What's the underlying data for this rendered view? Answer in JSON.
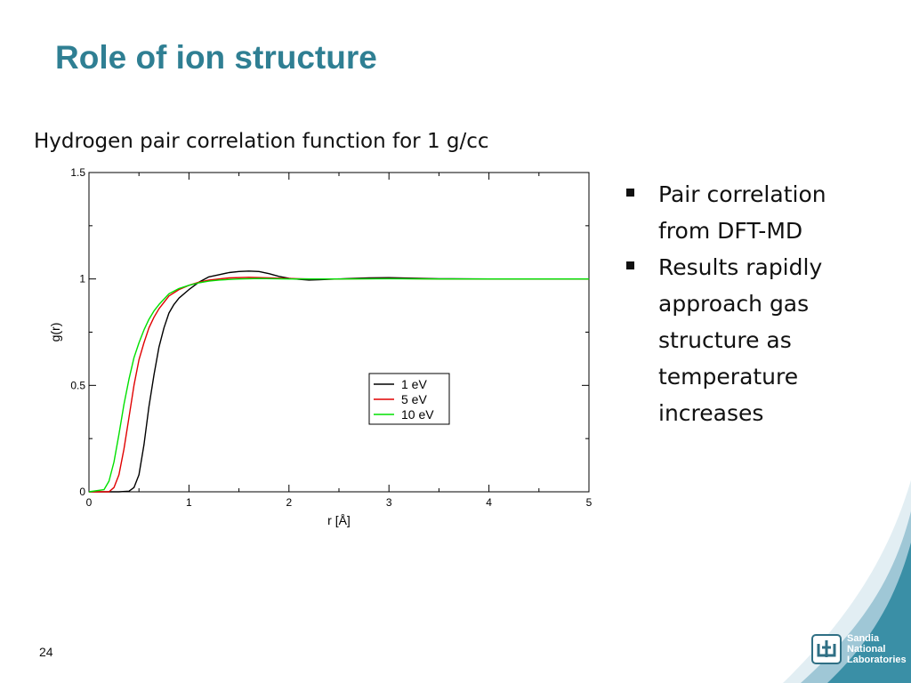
{
  "slide": {
    "title": "Role of ion structure",
    "chart_heading": "Hydrogen pair correlation function for 1 g/cc",
    "bullets": [
      "Pair correlation from DFT-MD",
      "Results rapidly approach gas structure as temperature increases"
    ],
    "page_number": "24",
    "logo_lines": [
      "Sandia",
      "National",
      "Laboratories"
    ],
    "colors": {
      "title": "#2f7f93",
      "swoosh": "#3a8fa6"
    }
  },
  "chart_data": {
    "type": "line",
    "xlabel": "r [Å]",
    "ylabel": "g(r)",
    "xlim": [
      0,
      5
    ],
    "ylim": [
      0,
      1.5
    ],
    "xticks": [
      "0",
      "1",
      "2",
      "3",
      "4",
      "5"
    ],
    "yticks": [
      "0",
      "0.5",
      "1",
      "1.5"
    ],
    "legend_position": "center-right",
    "series": [
      {
        "name": "1 eV",
        "color": "#000000",
        "x": [
          0,
          0.3,
          0.4,
          0.45,
          0.5,
          0.55,
          0.6,
          0.65,
          0.7,
          0.75,
          0.8,
          0.85,
          0.9,
          1.0,
          1.1,
          1.2,
          1.3,
          1.4,
          1.5,
          1.6,
          1.7,
          1.8,
          1.9,
          2.0,
          2.1,
          2.2,
          2.3,
          2.4,
          2.6,
          2.8,
          3.0,
          3.2,
          3.5,
          4.0,
          4.5,
          5.0
        ],
        "y": [
          0,
          0,
          0.003,
          0.02,
          0.08,
          0.22,
          0.4,
          0.55,
          0.68,
          0.77,
          0.84,
          0.88,
          0.91,
          0.95,
          0.985,
          1.01,
          1.02,
          1.03,
          1.035,
          1.037,
          1.035,
          1.025,
          1.012,
          1.003,
          0.998,
          0.995,
          0.996,
          0.998,
          1.002,
          1.005,
          1.006,
          1.004,
          1.001,
          1.0,
          1.0,
          1.0
        ]
      },
      {
        "name": "5 eV",
        "color": "#e00000",
        "x": [
          0,
          0.2,
          0.25,
          0.3,
          0.35,
          0.4,
          0.45,
          0.5,
          0.55,
          0.6,
          0.65,
          0.7,
          0.8,
          0.9,
          1.0,
          1.1,
          1.2,
          1.3,
          1.4,
          1.6,
          1.8,
          2.0,
          2.2,
          2.5,
          3.0,
          3.5,
          4.0,
          4.5,
          5.0
        ],
        "y": [
          0,
          0,
          0.02,
          0.08,
          0.2,
          0.35,
          0.5,
          0.62,
          0.7,
          0.77,
          0.82,
          0.86,
          0.92,
          0.95,
          0.97,
          0.985,
          0.995,
          1.0,
          1.005,
          1.008,
          1.005,
          1.002,
          1.0,
          1.0,
          1.002,
          1.0,
          1.0,
          1.0,
          1.0
        ]
      },
      {
        "name": "10 eV",
        "color": "#00e000",
        "x": [
          0,
          0.15,
          0.2,
          0.25,
          0.3,
          0.35,
          0.4,
          0.45,
          0.5,
          0.55,
          0.6,
          0.65,
          0.7,
          0.8,
          0.9,
          1.0,
          1.1,
          1.2,
          1.3,
          1.5,
          1.7,
          2.0,
          2.5,
          3.0,
          3.5,
          4.0,
          4.5,
          5.0
        ],
        "y": [
          0,
          0.01,
          0.05,
          0.14,
          0.27,
          0.41,
          0.53,
          0.63,
          0.7,
          0.76,
          0.81,
          0.85,
          0.88,
          0.93,
          0.955,
          0.97,
          0.982,
          0.99,
          0.995,
          1.0,
          1.002,
          1.0,
          1.0,
          1.001,
          1.0,
          1.0,
          1.0,
          1.0
        ]
      }
    ]
  }
}
